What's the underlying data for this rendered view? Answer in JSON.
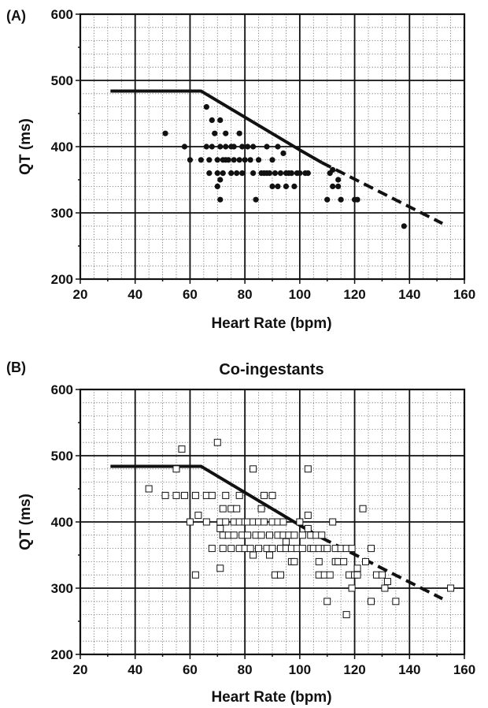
{
  "chart_data": [
    {
      "panel_label": "(A)",
      "type": "scatter",
      "title": "",
      "xlabel": "Heart Rate (bpm)",
      "ylabel": "QT (ms)",
      "xlim": [
        20,
        160
      ],
      "ylim": [
        200,
        600
      ],
      "xticks": [
        "20",
        "40",
        "60",
        "80",
        "100",
        "120",
        "140",
        "160"
      ],
      "yticks": [
        "200",
        "300",
        "400",
        "500",
        "600"
      ],
      "grid": "major solid, minor dotted",
      "marker": "filled-circle",
      "nomogram": {
        "solid": [
          [
            31,
            484
          ],
          [
            64,
            484
          ],
          [
            100,
            395
          ],
          [
            108,
            376
          ]
        ],
        "dashed": [
          [
            108,
            376
          ],
          [
            152,
            284
          ]
        ]
      },
      "points": [
        [
          51,
          420
        ],
        [
          58,
          400
        ],
        [
          60,
          380
        ],
        [
          64,
          380
        ],
        [
          66,
          460
        ],
        [
          66,
          400
        ],
        [
          67,
          380
        ],
        [
          67,
          360
        ],
        [
          68,
          440
        ],
        [
          68,
          400
        ],
        [
          69,
          420
        ],
        [
          70,
          380
        ],
        [
          70,
          360
        ],
        [
          70,
          340
        ],
        [
          71,
          440
        ],
        [
          71,
          400
        ],
        [
          71,
          350
        ],
        [
          71,
          320
        ],
        [
          72,
          380
        ],
        [
          72,
          360
        ],
        [
          73,
          420
        ],
        [
          73,
          400
        ],
        [
          73,
          380
        ],
        [
          74,
          380
        ],
        [
          75,
          400
        ],
        [
          75,
          360
        ],
        [
          76,
          400
        ],
        [
          76,
          380
        ],
        [
          77,
          360
        ],
        [
          78,
          420
        ],
        [
          78,
          380
        ],
        [
          79,
          400
        ],
        [
          79,
          360
        ],
        [
          80,
          380
        ],
        [
          81,
          400
        ],
        [
          82,
          380
        ],
        [
          83,
          400
        ],
        [
          83,
          360
        ],
        [
          84,
          320
        ],
        [
          85,
          380
        ],
        [
          86,
          360
        ],
        [
          87,
          360
        ],
        [
          88,
          400
        ],
        [
          88,
          360
        ],
        [
          89,
          360
        ],
        [
          90,
          380
        ],
        [
          90,
          340
        ],
        [
          91,
          360
        ],
        [
          92,
          400
        ],
        [
          92,
          340
        ],
        [
          93,
          360
        ],
        [
          94,
          390
        ],
        [
          95,
          340
        ],
        [
          95,
          360
        ],
        [
          96,
          360
        ],
        [
          97,
          360
        ],
        [
          98,
          340
        ],
        [
          99,
          360
        ],
        [
          100,
          360
        ],
        [
          102,
          360
        ],
        [
          103,
          360
        ],
        [
          110,
          320
        ],
        [
          111,
          360
        ],
        [
          112,
          340
        ],
        [
          112,
          365
        ],
        [
          114,
          350
        ],
        [
          114,
          340
        ],
        [
          115,
          320
        ],
        [
          120,
          320
        ],
        [
          121,
          320
        ],
        [
          138,
          280
        ]
      ]
    },
    {
      "panel_label": "(B)",
      "type": "scatter",
      "title": "Co-ingestants",
      "xlabel": "Heart Rate (bpm)",
      "ylabel": "QT (ms)",
      "xlim": [
        20,
        160
      ],
      "ylim": [
        200,
        600
      ],
      "xticks": [
        "20",
        "40",
        "60",
        "80",
        "100",
        "120",
        "140",
        "160"
      ],
      "yticks": [
        "200",
        "300",
        "400",
        "500",
        "600"
      ],
      "grid": "major solid, minor dotted",
      "marker": "open-square",
      "nomogram": {
        "solid": [
          [
            31,
            484
          ],
          [
            64,
            484
          ],
          [
            100,
            395
          ],
          [
            108,
            376
          ]
        ],
        "dashed": [
          [
            108,
            376
          ],
          [
            152,
            284
          ]
        ]
      },
      "points": [
        [
          45,
          450
        ],
        [
          51,
          440
        ],
        [
          55,
          480
        ],
        [
          55,
          440
        ],
        [
          57,
          510
        ],
        [
          58,
          440
        ],
        [
          60,
          400
        ],
        [
          62,
          440
        ],
        [
          62,
          320
        ],
        [
          63,
          410
        ],
        [
          66,
          400
        ],
        [
          66,
          440
        ],
        [
          68,
          440
        ],
        [
          68,
          360
        ],
        [
          70,
          520
        ],
        [
          71,
          400
        ],
        [
          71,
          390
        ],
        [
          71,
          330
        ],
        [
          72,
          420
        ],
        [
          72,
          380
        ],
        [
          72,
          360
        ],
        [
          73,
          440
        ],
        [
          73,
          400
        ],
        [
          74,
          380
        ],
        [
          75,
          420
        ],
        [
          75,
          360
        ],
        [
          76,
          400
        ],
        [
          76,
          380
        ],
        [
          77,
          420
        ],
        [
          78,
          440
        ],
        [
          78,
          400
        ],
        [
          78,
          360
        ],
        [
          79,
          380
        ],
        [
          80,
          400
        ],
        [
          80,
          360
        ],
        [
          81,
          400
        ],
        [
          81,
          380
        ],
        [
          82,
          360
        ],
        [
          83,
          480
        ],
        [
          83,
          400
        ],
        [
          83,
          350
        ],
        [
          84,
          380
        ],
        [
          85,
          360
        ],
        [
          85,
          400
        ],
        [
          86,
          420
        ],
        [
          86,
          380
        ],
        [
          87,
          440
        ],
        [
          87,
          400
        ],
        [
          88,
          360
        ],
        [
          89,
          380
        ],
        [
          89,
          350
        ],
        [
          90,
          440
        ],
        [
          90,
          400
        ],
        [
          90,
          360
        ],
        [
          91,
          320
        ],
        [
          92,
          400
        ],
        [
          92,
          380
        ],
        [
          93,
          360
        ],
        [
          93,
          320
        ],
        [
          94,
          380
        ],
        [
          94,
          400
        ],
        [
          95,
          360
        ],
        [
          95,
          370
        ],
        [
          96,
          380
        ],
        [
          97,
          340
        ],
        [
          97,
          360
        ],
        [
          98,
          340
        ],
        [
          98,
          380
        ],
        [
          99,
          360
        ],
        [
          100,
          400
        ],
        [
          101,
          380
        ],
        [
          101,
          360
        ],
        [
          103,
          480
        ],
        [
          103,
          410
        ],
        [
          103,
          390
        ],
        [
          104,
          380
        ],
        [
          104,
          360
        ],
        [
          105,
          360
        ],
        [
          106,
          380
        ],
        [
          107,
          360
        ],
        [
          107,
          340
        ],
        [
          107,
          320
        ],
        [
          108,
          380
        ],
        [
          109,
          360
        ],
        [
          109,
          320
        ],
        [
          110,
          280
        ],
        [
          110,
          360
        ],
        [
          111,
          320
        ],
        [
          112,
          400
        ],
        [
          113,
          360
        ],
        [
          113,
          340
        ],
        [
          114,
          340
        ],
        [
          115,
          360
        ],
        [
          116,
          340
        ],
        [
          117,
          260
        ],
        [
          117,
          360
        ],
        [
          118,
          320
        ],
        [
          119,
          300
        ],
        [
          119,
          360
        ],
        [
          120,
          320
        ],
        [
          121,
          320
        ],
        [
          121,
          330
        ],
        [
          123,
          420
        ],
        [
          124,
          340
        ],
        [
          126,
          360
        ],
        [
          126,
          280
        ],
        [
          128,
          320
        ],
        [
          130,
          320
        ],
        [
          131,
          300
        ],
        [
          132,
          310
        ],
        [
          135,
          280
        ],
        [
          155,
          300
        ]
      ]
    }
  ]
}
